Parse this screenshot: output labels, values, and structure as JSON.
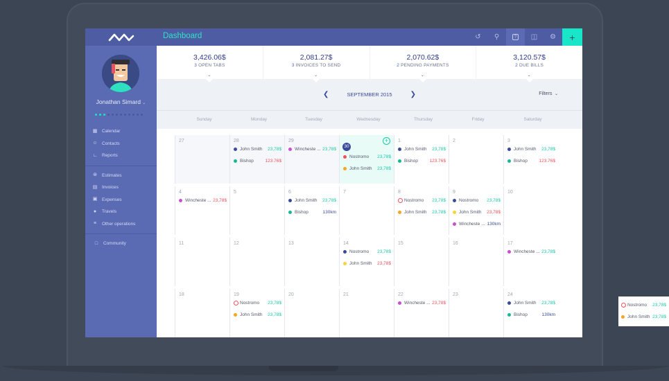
{
  "app": {
    "title": "Dashboard"
  },
  "user": {
    "name": "Jonathan Simard",
    "chevron": "v"
  },
  "sidebar": {
    "groups": [
      [
        {
          "label": "Calendar",
          "icon": "calendar-icon"
        },
        {
          "label": "Contacts",
          "icon": "contacts-icon"
        },
        {
          "label": "Reports",
          "icon": "reports-icon"
        }
      ],
      [
        {
          "label": "Estimates",
          "icon": "estimates-icon"
        },
        {
          "label": "Invoices",
          "icon": "invoices-icon"
        },
        {
          "label": "Expenses",
          "icon": "expenses-icon"
        },
        {
          "label": "Travels",
          "icon": "car-icon"
        },
        {
          "label": "Other operations",
          "icon": "sliders-icon"
        }
      ],
      [
        {
          "label": "Community",
          "icon": "chat-icon"
        }
      ]
    ]
  },
  "toolbar": {
    "icons": [
      "history-icon",
      "search-icon",
      "help-icon",
      "book-icon",
      "settings-icon"
    ],
    "add_label": "+"
  },
  "stats": [
    {
      "value": "3,426.06$",
      "count": "3",
      "label": "OPEN TABS"
    },
    {
      "value": "2,081.27$",
      "count": "3",
      "label": "INVOICES TO SEND"
    },
    {
      "value": "2,070.62$",
      "count": "2",
      "label": "PENDING PAYMENTS"
    },
    {
      "value": "3,120.57$",
      "count": "2",
      "label": "DUE BILLS"
    }
  ],
  "calendar": {
    "month": "SEPTEMBER 2015",
    "prev": "<",
    "next": ">",
    "filters": "Filters",
    "weekdays": [
      "Sunday",
      "Monday",
      "Tuesday",
      "Wednesday",
      "Thursday",
      "Friday",
      "Saturday"
    ],
    "weeks": [
      [
        {
          "day": "27",
          "state": "past",
          "events": []
        },
        {
          "day": "28",
          "state": "past",
          "events": [
            {
              "name": "John Smith",
              "value": "23,78$",
              "dot": "#3a4a9a",
              "vcolor": "#19c9a6"
            },
            {
              "name": "Bishop",
              "value": "123.76$",
              "dot": "#19b894",
              "vcolor": "#f2505a"
            }
          ]
        },
        {
          "day": "29",
          "state": "past",
          "events": [
            {
              "name": "Wincheste ...",
              "value": "23,78$",
              "dot": "#c84fd0",
              "vcolor": "#19c9a6"
            }
          ]
        },
        {
          "day": "30",
          "state": "today",
          "events": [
            {
              "name": "Nostromo",
              "value": "23,78$",
              "dot": "#f2505a",
              "vcolor": "#19c9a6"
            },
            {
              "name": "John Smith",
              "value": "23,78$",
              "dot": "#f5a623",
              "vcolor": "#19c9a6"
            }
          ]
        },
        {
          "day": "1",
          "state": "",
          "events": [
            {
              "name": "John Smith",
              "value": "23,78$",
              "dot": "#3a4a9a",
              "vcolor": "#19c9a6"
            },
            {
              "name": "Bishop",
              "value": "123.76$",
              "dot": "#19b894",
              "vcolor": "#f2505a"
            }
          ]
        },
        {
          "day": "2",
          "state": "",
          "events": []
        },
        {
          "day": "3",
          "state": "",
          "events": [
            {
              "name": "John Smith",
              "value": "23,78$",
              "dot": "#3a4a9a",
              "vcolor": "#19c9a6"
            },
            {
              "name": "Bishop",
              "value": "123.76$",
              "dot": "#19b894",
              "vcolor": "#f2505a"
            }
          ]
        }
      ],
      [
        {
          "day": "4",
          "state": "",
          "events": [
            {
              "name": "Wincheste ...",
              "value": "23,78$",
              "dot": "#c84fd0",
              "vcolor": "#f2505a"
            }
          ]
        },
        {
          "day": "5",
          "state": "",
          "events": []
        },
        {
          "day": "6",
          "state": "",
          "events": [
            {
              "name": "John Smith",
              "value": "23,78$",
              "dot": "#3a4a9a",
              "vcolor": "#19c9a6"
            },
            {
              "name": "Bishop",
              "value": "130km",
              "dot": "#19b894",
              "vcolor": "#3a4a9a"
            }
          ]
        },
        {
          "day": "7",
          "state": "",
          "events": []
        },
        {
          "day": "8",
          "state": "",
          "events": [
            {
              "name": "Nostromo",
              "value": "23,78$",
              "dot": "ring",
              "vcolor": "#19c9a6"
            },
            {
              "name": "John Smith",
              "value": "23,78$",
              "dot": "#f5a623",
              "vcolor": "#19c9a6"
            }
          ]
        },
        {
          "day": "9",
          "state": "",
          "events": [
            {
              "name": "Nostromo",
              "value": "23,78$",
              "dot": "#3a4a9a",
              "vcolor": "#19c9a6"
            },
            {
              "name": "John Smith",
              "value": "23,78$",
              "dot": "#f8d33a",
              "vcolor": "#f2505a"
            },
            {
              "name": "Wincheste ...",
              "value": "130km",
              "dot": "#c84fd0",
              "vcolor": "#3a4a9a"
            }
          ]
        },
        {
          "day": "10",
          "state": "",
          "events": []
        }
      ],
      [
        {
          "day": "11",
          "state": "",
          "events": []
        },
        {
          "day": "12",
          "state": "",
          "events": []
        },
        {
          "day": "13",
          "state": "",
          "events": []
        },
        {
          "day": "14",
          "state": "",
          "events": [
            {
              "name": "Nostromo",
              "value": "23,78$",
              "dot": "#3a4a9a",
              "vcolor": "#19c9a6"
            },
            {
              "name": "John Smith",
              "value": "23,78$",
              "dot": "#f8d33a",
              "vcolor": "#f2505a"
            }
          ]
        },
        {
          "day": "15",
          "state": "",
          "events": []
        },
        {
          "day": "16",
          "state": "",
          "events": []
        },
        {
          "day": "17",
          "state": "",
          "events": [
            {
              "name": "Wincheste ...",
              "value": "23,78$",
              "dot": "#c84fd0",
              "vcolor": "#19c9a6"
            }
          ]
        }
      ],
      [
        {
          "day": "18",
          "state": "",
          "events": []
        },
        {
          "day": "19",
          "state": "",
          "events": [
            {
              "name": "Nostromo",
              "value": "23,78$",
              "dot": "ring",
              "vcolor": "#19c9a6"
            },
            {
              "name": "John Smith",
              "value": "23,78$",
              "dot": "#f5a623",
              "vcolor": "#19c9a6"
            }
          ]
        },
        {
          "day": "20",
          "state": "",
          "events": []
        },
        {
          "day": "21",
          "state": "",
          "events": []
        },
        {
          "day": "22",
          "state": "",
          "events": [
            {
              "name": "Wincheste ...",
              "value": "23,78$",
              "dot": "#c84fd0",
              "vcolor": "#f2505a"
            }
          ]
        },
        {
          "day": "23",
          "state": "",
          "events": []
        },
        {
          "day": "24",
          "state": "",
          "events": [
            {
              "name": "John Smith",
              "value": "23,78$",
              "dot": "#3a4a9a",
              "vcolor": "#19c9a6"
            },
            {
              "name": "Bishop",
              "value": "130km",
              "dot": "#19b894",
              "vcolor": "#3a4a9a"
            }
          ]
        }
      ]
    ]
  },
  "floating_card": {
    "events": [
      {
        "name": "Nostromo",
        "value": "23,78$",
        "dot": "ring",
        "vcolor": "#19c9a6"
      },
      {
        "name": "John Smith",
        "value": "23,78$",
        "dot": "#f5a623",
        "vcolor": "#19c9a6"
      }
    ]
  },
  "colors": {
    "accent": "#19e6c8",
    "sidebar": "#5a6bb3",
    "topbar": "#4d5ca3",
    "primary": "#3a4a9a",
    "negative": "#f2505a",
    "positive": "#19c9a6"
  }
}
